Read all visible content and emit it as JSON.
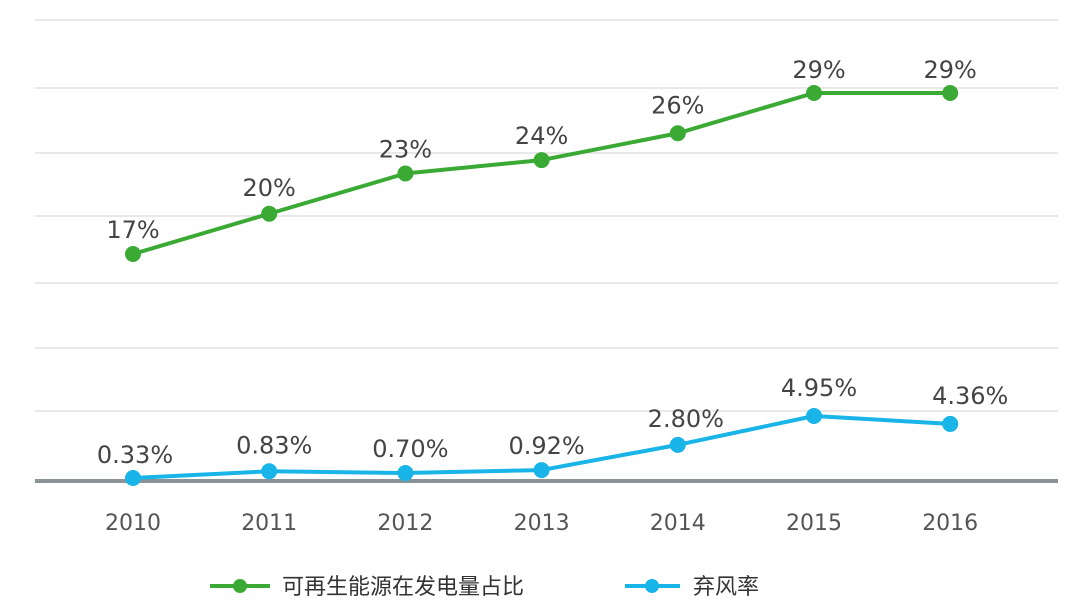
{
  "chart_data": {
    "type": "line",
    "categories": [
      "2010",
      "2011",
      "2012",
      "2013",
      "2014",
      "2015",
      "2016"
    ],
    "series": [
      {
        "name": "可再生能源在发电量占比",
        "color": "#3aaa35",
        "values": [
          17,
          20,
          23,
          24,
          26,
          29,
          29
        ],
        "labels": [
          "17%",
          "20%",
          "23%",
          "24%",
          "26%",
          "29%",
          "29%"
        ]
      },
      {
        "name": "弃风率",
        "color": "#19b4e8",
        "values": [
          0.33,
          0.83,
          0.7,
          0.92,
          2.8,
          4.95,
          4.36
        ],
        "labels": [
          "0.33%",
          "0.83%",
          "0.70%",
          "0.92%",
          "2.80%",
          "4.95%",
          "4.36%"
        ]
      }
    ],
    "grid": true,
    "legend": "bottom-center",
    "axis_color": "#8a9396",
    "grid_color": "#d9d9d9"
  }
}
